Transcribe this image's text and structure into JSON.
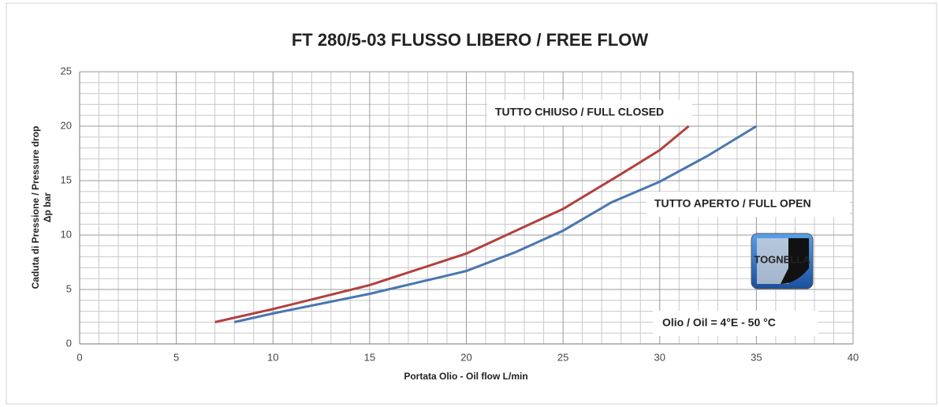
{
  "chart_data": {
    "type": "line",
    "title": "FT 280/5-03 FLUSSO LIBERO / FREE FLOW",
    "x_label": "Portata Olio - Oil flow L/min",
    "y_label": [
      "Caduta di Pressione / Pressure drop",
      "Δp bar"
    ],
    "xlim": [
      0,
      40
    ],
    "xticks": [
      0,
      5,
      10,
      15,
      20,
      25,
      30,
      35,
      40
    ],
    "ylim": [
      0,
      25
    ],
    "yticks": [
      0,
      5,
      10,
      15,
      20,
      25
    ],
    "grid": true,
    "minor_grid_divisions": 5,
    "series": [
      {
        "name": "TUTTO CHIUSO / FULL CLOSED",
        "color": "#b0413e",
        "x": [
          7,
          10,
          15,
          20,
          25,
          28,
          30,
          31.5
        ],
        "values": [
          2,
          3.2,
          5.4,
          8.3,
          12.4,
          15.6,
          17.8,
          20
        ]
      },
      {
        "name": "TUTTO APERTO / FULL OPEN",
        "color": "#4a76b0",
        "x": [
          8,
          10,
          15,
          20,
          22.5,
          25,
          27.5,
          30,
          32.5,
          35
        ],
        "values": [
          2,
          2.8,
          4.6,
          6.7,
          8.4,
          10.4,
          13,
          14.9,
          17.3,
          20
        ]
      }
    ],
    "annotations": [
      "Olio / Oil = 4°E - 50 °C"
    ],
    "logo": "TOGNELLA"
  }
}
